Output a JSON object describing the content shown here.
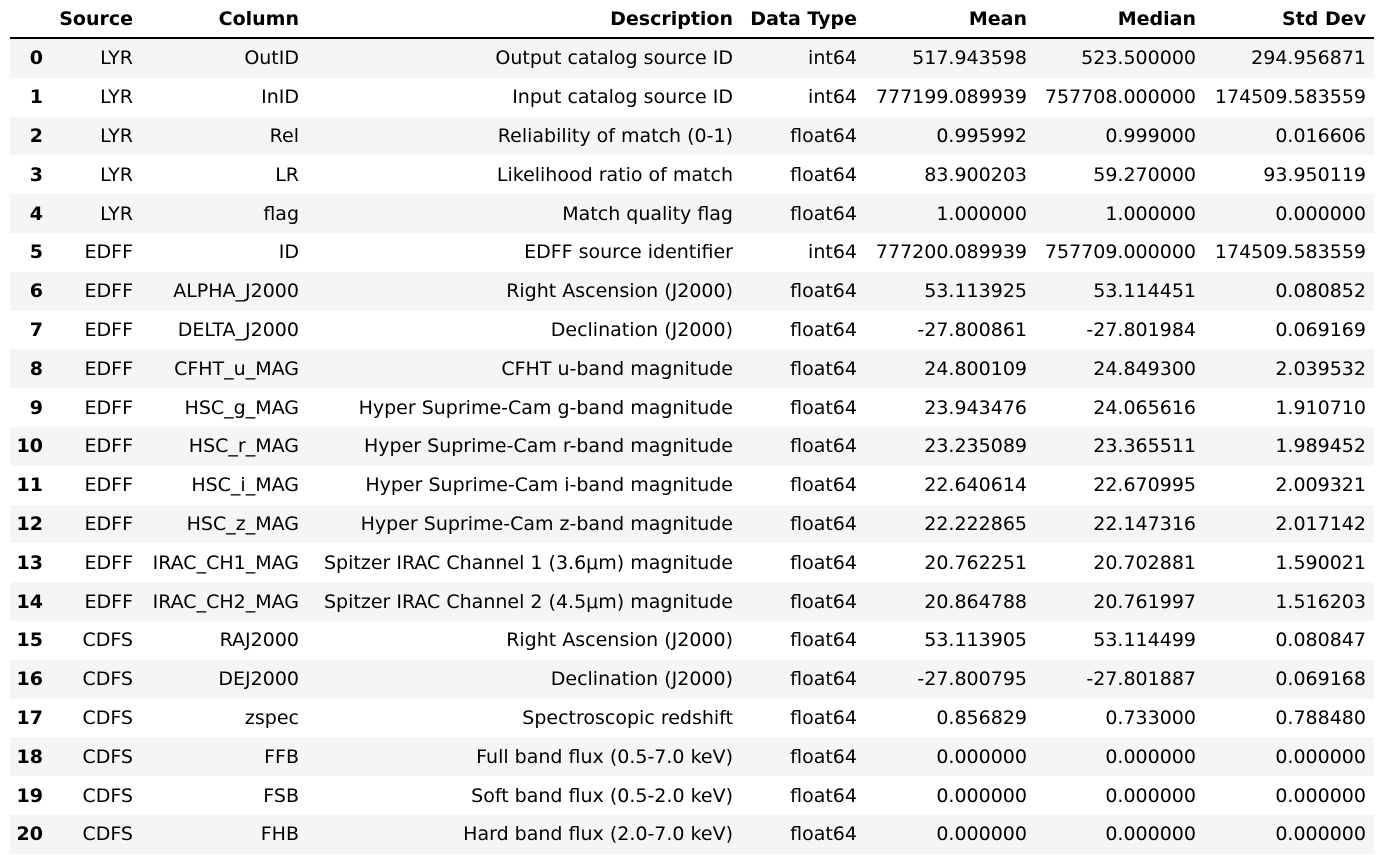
{
  "headers": [
    "",
    "Source",
    "Column",
    "Description",
    "Data Type",
    "Mean",
    "Median",
    "Std Dev"
  ],
  "rows": [
    {
      "idx": "0",
      "source": "LYR",
      "column": "OutID",
      "description": "Output catalog source ID",
      "dtype": "int64",
      "mean": "517.943598",
      "median": "523.500000",
      "std": "294.956871"
    },
    {
      "idx": "1",
      "source": "LYR",
      "column": "InID",
      "description": "Input catalog source ID",
      "dtype": "int64",
      "mean": "777199.089939",
      "median": "757708.000000",
      "std": "174509.583559"
    },
    {
      "idx": "2",
      "source": "LYR",
      "column": "Rel",
      "description": "Reliability of match (0-1)",
      "dtype": "float64",
      "mean": "0.995992",
      "median": "0.999000",
      "std": "0.016606"
    },
    {
      "idx": "3",
      "source": "LYR",
      "column": "LR",
      "description": "Likelihood ratio of match",
      "dtype": "float64",
      "mean": "83.900203",
      "median": "59.270000",
      "std": "93.950119"
    },
    {
      "idx": "4",
      "source": "LYR",
      "column": "flag",
      "description": "Match quality flag",
      "dtype": "float64",
      "mean": "1.000000",
      "median": "1.000000",
      "std": "0.000000"
    },
    {
      "idx": "5",
      "source": "EDFF",
      "column": "ID",
      "description": "EDFF source identifier",
      "dtype": "int64",
      "mean": "777200.089939",
      "median": "757709.000000",
      "std": "174509.583559"
    },
    {
      "idx": "6",
      "source": "EDFF",
      "column": "ALPHA_J2000",
      "description": "Right Ascension (J2000)",
      "dtype": "float64",
      "mean": "53.113925",
      "median": "53.114451",
      "std": "0.080852"
    },
    {
      "idx": "7",
      "source": "EDFF",
      "column": "DELTA_J2000",
      "description": "Declination (J2000)",
      "dtype": "float64",
      "mean": "-27.800861",
      "median": "-27.801984",
      "std": "0.069169"
    },
    {
      "idx": "8",
      "source": "EDFF",
      "column": "CFHT_u_MAG",
      "description": "CFHT u-band magnitude",
      "dtype": "float64",
      "mean": "24.800109",
      "median": "24.849300",
      "std": "2.039532"
    },
    {
      "idx": "9",
      "source": "EDFF",
      "column": "HSC_g_MAG",
      "description": "Hyper Suprime-Cam g-band magnitude",
      "dtype": "float64",
      "mean": "23.943476",
      "median": "24.065616",
      "std": "1.910710"
    },
    {
      "idx": "10",
      "source": "EDFF",
      "column": "HSC_r_MAG",
      "description": "Hyper Suprime-Cam r-band magnitude",
      "dtype": "float64",
      "mean": "23.235089",
      "median": "23.365511",
      "std": "1.989452"
    },
    {
      "idx": "11",
      "source": "EDFF",
      "column": "HSC_i_MAG",
      "description": "Hyper Suprime-Cam i-band magnitude",
      "dtype": "float64",
      "mean": "22.640614",
      "median": "22.670995",
      "std": "2.009321"
    },
    {
      "idx": "12",
      "source": "EDFF",
      "column": "HSC_z_MAG",
      "description": "Hyper Suprime-Cam z-band magnitude",
      "dtype": "float64",
      "mean": "22.222865",
      "median": "22.147316",
      "std": "2.017142"
    },
    {
      "idx": "13",
      "source": "EDFF",
      "column": "IRAC_CH1_MAG",
      "description": "Spitzer IRAC Channel 1 (3.6μm) magnitude",
      "dtype": "float64",
      "mean": "20.762251",
      "median": "20.702881",
      "std": "1.590021"
    },
    {
      "idx": "14",
      "source": "EDFF",
      "column": "IRAC_CH2_MAG",
      "description": "Spitzer IRAC Channel 2 (4.5μm) magnitude",
      "dtype": "float64",
      "mean": "20.864788",
      "median": "20.761997",
      "std": "1.516203"
    },
    {
      "idx": "15",
      "source": "CDFS",
      "column": "RAJ2000",
      "description": "Right Ascension (J2000)",
      "dtype": "float64",
      "mean": "53.113905",
      "median": "53.114499",
      "std": "0.080847"
    },
    {
      "idx": "16",
      "source": "CDFS",
      "column": "DEJ2000",
      "description": "Declination (J2000)",
      "dtype": "float64",
      "mean": "-27.800795",
      "median": "-27.801887",
      "std": "0.069168"
    },
    {
      "idx": "17",
      "source": "CDFS",
      "column": "zspec",
      "description": "Spectroscopic redshift",
      "dtype": "float64",
      "mean": "0.856829",
      "median": "0.733000",
      "std": "0.788480"
    },
    {
      "idx": "18",
      "source": "CDFS",
      "column": "FFB",
      "description": "Full band flux (0.5-7.0 keV)",
      "dtype": "float64",
      "mean": "0.000000",
      "median": "0.000000",
      "std": "0.000000"
    },
    {
      "idx": "19",
      "source": "CDFS",
      "column": "FSB",
      "description": "Soft band flux (0.5-2.0 keV)",
      "dtype": "float64",
      "mean": "0.000000",
      "median": "0.000000",
      "std": "0.000000"
    },
    {
      "idx": "20",
      "source": "CDFS",
      "column": "FHB",
      "description": "Hard band flux (2.0-7.0 keV)",
      "dtype": "float64",
      "mean": "0.000000",
      "median": "0.000000",
      "std": "0.000000"
    }
  ]
}
